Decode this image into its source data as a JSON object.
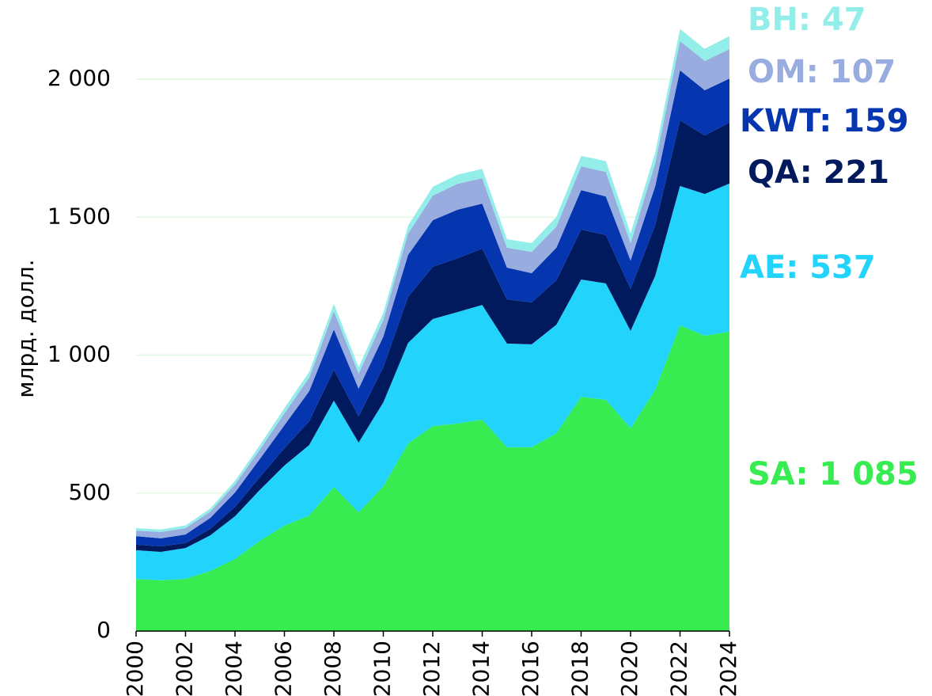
{
  "chart_data": {
    "type": "stacked_area",
    "y_label": "млрд. долл.",
    "x": [
      2000,
      2001,
      2002,
      2003,
      2004,
      2005,
      2006,
      2007,
      2008,
      2009,
      2010,
      2011,
      2012,
      2013,
      2014,
      2015,
      2016,
      2017,
      2018,
      2019,
      2020,
      2021,
      2022,
      2023,
      2024
    ],
    "xlim": [
      2000,
      2024
    ],
    "xticks": [
      2000,
      2002,
      2004,
      2006,
      2008,
      2010,
      2012,
      2014,
      2016,
      2018,
      2020,
      2022,
      2024
    ],
    "ylim": [
      0,
      2200
    ],
    "yticks": [
      0,
      500,
      {
        "value": 1000,
        "label": "1 000"
      },
      {
        "value": 1500,
        "label": "1 500"
      },
      {
        "value": 2000,
        "label": "2 000"
      }
    ],
    "grid": true,
    "series": [
      {
        "name": "SA: 1 085",
        "color": "#37ec50",
        "values": [
          189,
          184,
          189,
          218,
          261,
          327,
          382,
          419,
          522,
          430,
          525,
          680,
          743,
          752,
          766,
          666,
          666,
          717,
          849,
          838,
          735,
          875,
          1108,
          1070,
          1085
        ]
      },
      {
        "name": "AE: 537",
        "color": "#22d3fc",
        "values": [
          104,
          103,
          112,
          129,
          155,
          184,
          218,
          255,
          313,
          253,
          304,
          364,
          388,
          404,
          416,
          376,
          373,
          393,
          425,
          422,
          353,
          413,
          505,
          514,
          537
        ]
      },
      {
        "name": "QA: 221",
        "color": "#011a5e",
        "values": [
          20,
          20,
          18,
          23,
          34,
          46,
          63,
          86,
          112,
          95,
          127,
          167,
          189,
          195,
          204,
          160,
          152,
          161,
          181,
          175,
          152,
          184,
          238,
          212,
          221
        ]
      },
      {
        "name": "KWT: 159",
        "color": "#0536b0",
        "values": [
          31,
          29,
          31,
          40,
          52,
          66,
          83,
          109,
          146,
          100,
          111,
          152,
          169,
          176,
          163,
          115,
          106,
          118,
          143,
          140,
          103,
          141,
          181,
          164,
          159
        ]
      },
      {
        "name": "OM: 107",
        "color": "#98acdf",
        "values": [
          20,
          23,
          23,
          23,
          29,
          34,
          43,
          49,
          66,
          55,
          61,
          77,
          89,
          94,
          92,
          72,
          77,
          77,
          86,
          89,
          63,
          83,
          106,
          106,
          107
        ]
      },
      {
        "name": "BH: 47",
        "color": "#93eee9",
        "values": [
          9,
          9,
          10,
          11,
          13,
          16,
          19,
          21,
          27,
          23,
          26,
          29,
          32,
          33,
          34,
          31,
          32,
          35,
          38,
          39,
          35,
          39,
          44,
          44,
          47
        ]
      }
    ]
  }
}
